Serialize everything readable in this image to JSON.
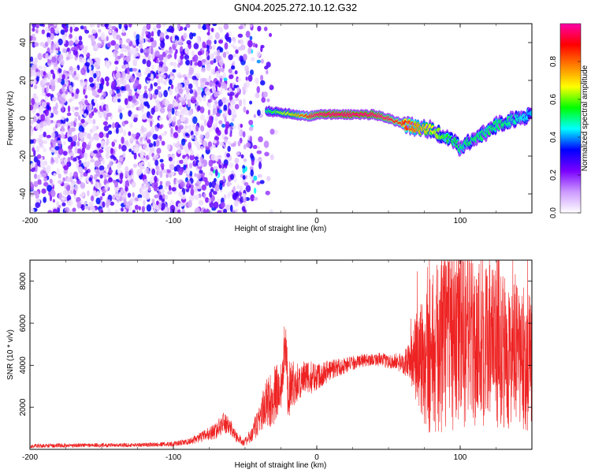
{
  "title": "GN04.2025.272.10.12.G32",
  "chart_data": [
    {
      "type": "heatmap",
      "title": "GN04.2025.272.10.12.G32",
      "xlabel": "Height of straight line (km)",
      "ylabel": "Frequency (Hz)",
      "xlim": [
        -200,
        150
      ],
      "ylim": [
        -50,
        50
      ],
      "xticks": [
        -200,
        -100,
        0,
        100
      ],
      "yticks": [
        -40,
        -20,
        0,
        20,
        40
      ],
      "xtick_labels": [
        "-200",
        "-100",
        "0",
        "100"
      ],
      "ytick_labels": [
        "-40",
        "-20",
        "0",
        "20",
        "40"
      ],
      "colorbar": {
        "label": "Normalized spectral amplitude",
        "range": [
          0,
          1
        ],
        "ticks": [
          0.0,
          0.2,
          0.4,
          0.6,
          0.8
        ],
        "tick_labels": [
          "0.0",
          "0.2",
          "0.4",
          "0.6",
          "0.8"
        ],
        "colors": [
          "#ffffff",
          "#cc99ff",
          "#7a00ff",
          "#0000ff",
          "#00ffff",
          "#00ff00",
          "#ffff00",
          "#ff8000",
          "#ff0000",
          "#ff00aa"
        ]
      },
      "ridge": {
        "x": [
          -35,
          -25,
          -15,
          -5,
          0,
          10,
          20,
          30,
          40,
          50,
          60,
          70,
          80,
          90,
          100,
          110,
          120,
          130,
          140,
          150
        ],
        "frequency": [
          4,
          3,
          2,
          1,
          2,
          2,
          2,
          2,
          2,
          0,
          -3,
          -5,
          -6,
          -10,
          -15,
          -11,
          -6,
          -2,
          0,
          2
        ],
        "amplitude": [
          0.4,
          0.5,
          0.6,
          0.8,
          0.9,
          1.0,
          1.0,
          1.0,
          0.95,
          0.85,
          0.75,
          0.65,
          0.55,
          0.45,
          0.4,
          0.4,
          0.4,
          0.4,
          0.35,
          0.3
        ]
      }
    },
    {
      "type": "line",
      "xlabel": "Height of straight line (km)",
      "ylabel": "SNR (10 * v/v)",
      "xlim": [
        -200,
        150
      ],
      "ylim": [
        0,
        9000
      ],
      "xticks": [
        -200,
        -100,
        0,
        100
      ],
      "yticks": [
        2000,
        4000,
        6000,
        8000
      ],
      "xtick_labels": [
        "-200",
        "-100",
        "0",
        "100"
      ],
      "ytick_labels": [
        "2000",
        "4000",
        "6000",
        "8000"
      ],
      "color": "#ee2222",
      "series": [
        {
          "name": "SNR",
          "x": [
            -200,
            -180,
            -160,
            -140,
            -120,
            -100,
            -90,
            -80,
            -70,
            -65,
            -60,
            -55,
            -50,
            -45,
            -40,
            -35,
            -30,
            -25,
            -22,
            -20,
            -15,
            -10,
            -5,
            0,
            10,
            20,
            30,
            40,
            50,
            60,
            65,
            70,
            75,
            80,
            90,
            100,
            110,
            120,
            130,
            140,
            150
          ],
          "values": [
            150,
            180,
            200,
            190,
            220,
            260,
            350,
            600,
            900,
            1300,
            1000,
            500,
            350,
            700,
            1500,
            2200,
            2500,
            3000,
            5300,
            2800,
            3200,
            3300,
            3400,
            3500,
            3800,
            4000,
            4200,
            4300,
            4200,
            4100,
            4200,
            4300,
            4500,
            4600,
            5000,
            5200,
            5200,
            5000,
            4600,
            4300,
            4200
          ],
          "spread": [
            100,
            100,
            100,
            100,
            100,
            120,
            150,
            250,
            400,
            500,
            400,
            250,
            200,
            400,
            800,
            1200,
            1400,
            1500,
            1000,
            1400,
            1000,
            900,
            800,
            700,
            500,
            400,
            300,
            300,
            350,
            500,
            900,
            2500,
            3500,
            4000,
            4200,
            4200,
            4200,
            4000,
            3600,
            3500,
            3400
          ],
          "peak": 8900
        }
      ]
    }
  ]
}
